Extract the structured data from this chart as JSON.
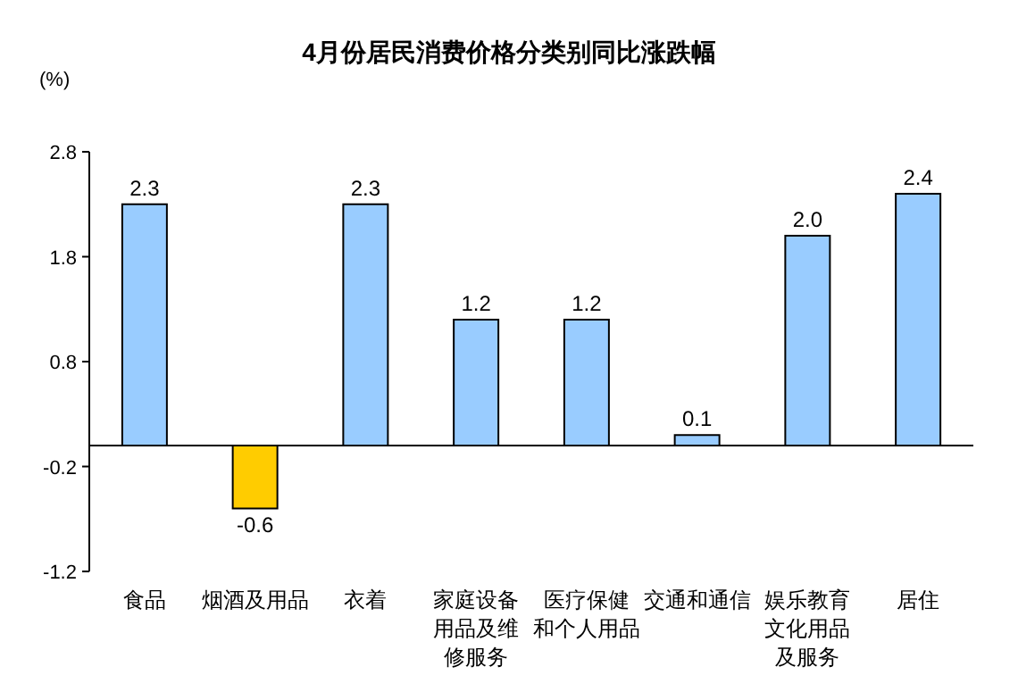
{
  "chart_data": {
    "type": "bar",
    "title": "4月份居民消费价格分类别同比涨跌幅",
    "ylabel": "(%)",
    "categories": [
      "食品",
      "烟酒及用品",
      "衣着",
      "家庭设备用品及维修服务",
      "医疗保健和个人用品",
      "交通和通信",
      "娱乐教育文化用品及服务",
      "居住"
    ],
    "values": [
      2.3,
      -0.6,
      2.3,
      1.2,
      1.2,
      0.1,
      2.0,
      2.4
    ],
    "colors": [
      "#99ccff",
      "#ffcc00",
      "#99ccff",
      "#99ccff",
      "#99ccff",
      "#99ccff",
      "#99ccff",
      "#99ccff"
    ],
    "value_labels": [
      "2.3",
      "-0.6",
      "2.3",
      "1.2",
      "1.2",
      "0.1",
      "2.0",
      "2.4"
    ],
    "ylim": [
      -1.2,
      2.8
    ],
    "yticks": [
      -1.2,
      -0.2,
      0.8,
      1.8,
      2.8
    ],
    "grid": false
  }
}
